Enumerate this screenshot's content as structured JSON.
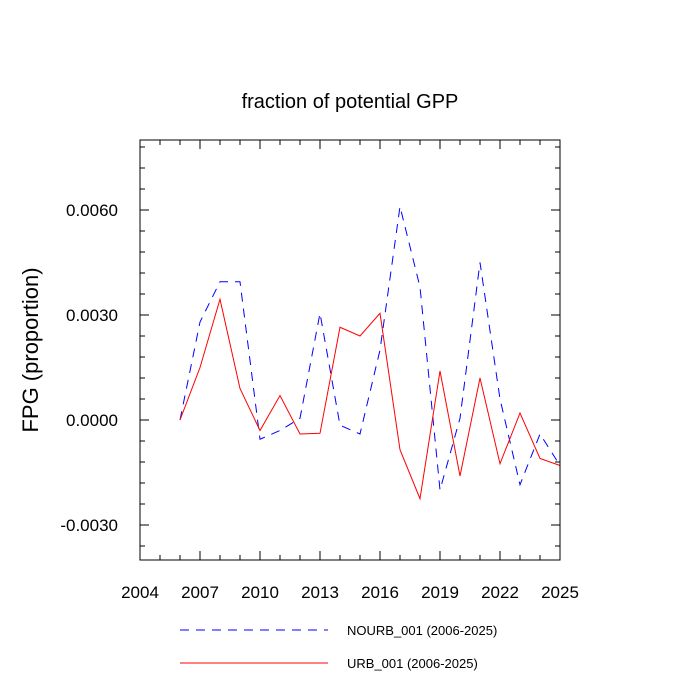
{
  "chart_data": {
    "type": "line",
    "title": "fraction of potential GPP",
    "xlabel": "",
    "ylabel": "FPG  (proportion)",
    "xlim": [
      2004,
      2025
    ],
    "ylim": [
      -0.004,
      0.008
    ],
    "x_ticks": [
      2004,
      2007,
      2010,
      2013,
      2016,
      2019,
      2022,
      2025
    ],
    "x_tick_labels": [
      "2004",
      "2007",
      "2010",
      "2013",
      "2016",
      "2019",
      "2022",
      "2025"
    ],
    "y_ticks": [
      -0.003,
      0.0,
      0.003,
      0.006
    ],
    "y_tick_labels": [
      "-0.0030",
      "0.0000",
      "0.0030",
      "0.0060"
    ],
    "grid": false,
    "legend_position": "bottom",
    "x": [
      2006,
      2007,
      2008,
      2009,
      2010,
      2011,
      2012,
      2013,
      2014,
      2015,
      2016,
      2017,
      2018,
      2019,
      2020,
      2021,
      2022,
      2023,
      2024,
      2025
    ],
    "series": [
      {
        "name": "NOURB_001 (2006-2025)",
        "color": "#0000ff",
        "style": "dashed",
        "values": [
          0.0,
          0.0028,
          0.00395,
          0.00395,
          -0.00055,
          -0.0003,
          5e-05,
          0.00305,
          -0.00015,
          -0.0004,
          0.002,
          0.0061,
          0.0038,
          -0.002,
          5e-05,
          0.0045,
          0.0006,
          -0.00185,
          -0.0004,
          -0.0013
        ]
      },
      {
        "name": "URB_001 (2006-2025)",
        "color": "#ff0000",
        "style": "solid",
        "values": [
          0.0,
          0.0015,
          0.00345,
          0.0009,
          -0.0003,
          0.0007,
          -0.0004,
          -0.00038,
          0.00265,
          0.0024,
          0.00305,
          -0.00085,
          -0.00225,
          0.0014,
          -0.0016,
          0.0012,
          -0.00125,
          0.0002,
          -0.0011,
          -0.0013
        ]
      }
    ]
  }
}
